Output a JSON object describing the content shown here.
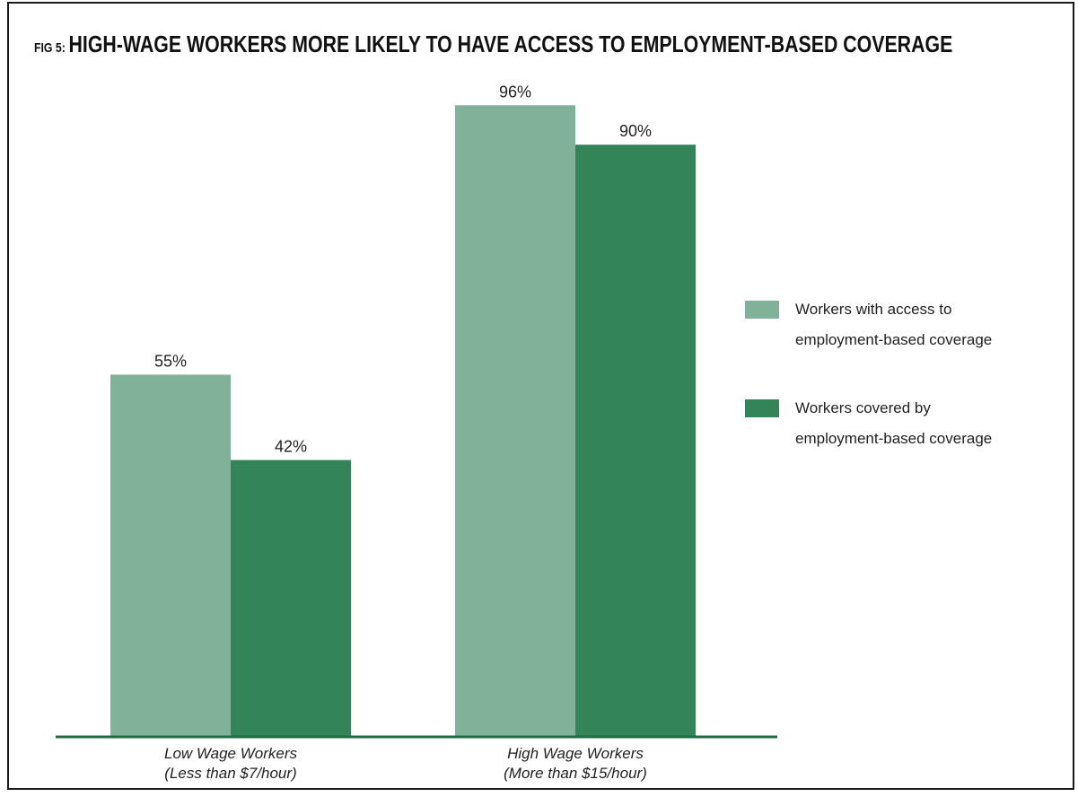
{
  "figure": {
    "label": "FIG 5:",
    "title": "HIGH-WAGE WORKERS MORE LIKELY TO HAVE ACCESS TO EMPLOYMENT-BASED COVERAGE"
  },
  "colors": {
    "access": "#80b29a",
    "covered": "#338459",
    "baseline": "#1f6b43"
  },
  "chart_data": {
    "type": "bar",
    "title": "HIGH-WAGE WORKERS MORE LIKELY TO HAVE ACCESS TO EMPLOYMENT-BASED COVERAGE",
    "categories": [
      {
        "line1": "Low Wage Workers",
        "line2": "(Less than $7/hour)"
      },
      {
        "line1": "High Wage Workers",
        "line2": "(More than $15/hour)"
      }
    ],
    "series": [
      {
        "name_lines": [
          "Workers with access to",
          "employment-based coverage"
        ],
        "color": "#80b29a",
        "values": [
          55,
          96
        ],
        "labels": [
          "55%",
          "96%"
        ]
      },
      {
        "name_lines": [
          "Workers covered by",
          "employment-based coverage"
        ],
        "color": "#338459",
        "values": [
          42,
          90
        ],
        "labels": [
          "42%",
          "90%"
        ]
      }
    ],
    "ylim": [
      0,
      100
    ],
    "grid": false,
    "legend_position": "right"
  }
}
